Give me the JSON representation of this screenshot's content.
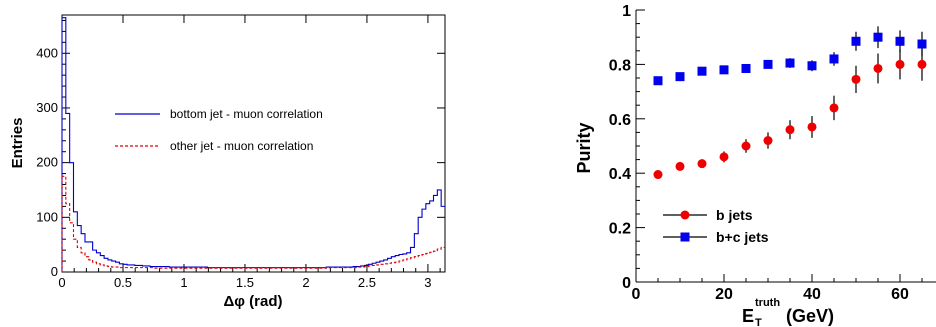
{
  "chart_data": [
    {
      "type": "histogram",
      "xlabel": "Δφ (rad)",
      "ylabel": "Entries",
      "xlim": [
        0,
        3.14
      ],
      "ylim": [
        0,
        470
      ],
      "x_ticks": [
        "0",
        "0.5",
        "1",
        "1.5",
        "2",
        "2.5",
        "3"
      ],
      "x_tick_values": [
        0,
        0.5,
        1,
        1.5,
        2,
        2.5,
        3
      ],
      "y_ticks": [
        "0",
        "100",
        "200",
        "300",
        "400"
      ],
      "y_tick_values": [
        0,
        100,
        200,
        300,
        400
      ],
      "bin_width": 0.0314,
      "legend_position": "center-right",
      "series": [
        {
          "name": "bottom jet - muon correlation",
          "color": "#0000cc",
          "style": "solid",
          "values": [
            465,
            290,
            200,
            110,
            85,
            70,
            55,
            55,
            40,
            35,
            30,
            25,
            22,
            20,
            18,
            15,
            14,
            13,
            13,
            12,
            12,
            11,
            11,
            10,
            10,
            10,
            10,
            10,
            9,
            9,
            9,
            9,
            9,
            9,
            9,
            9,
            9,
            9,
            8,
            8,
            8,
            8,
            8,
            8,
            8,
            8,
            8,
            8,
            8,
            8,
            8,
            8,
            8,
            8,
            8,
            8,
            8,
            8,
            8,
            8,
            8,
            8,
            8,
            8,
            8,
            8,
            8,
            8,
            8,
            9,
            9,
            9,
            9,
            9,
            9,
            9,
            10,
            10,
            11,
            12,
            14,
            16,
            18,
            20,
            22,
            25,
            28,
            30,
            32,
            33,
            35,
            45,
            70,
            100,
            115,
            125,
            130,
            140,
            150,
            120
          ]
        },
        {
          "name": "other jet - muon correlation",
          "color": "#dd0000",
          "style": "dashed",
          "values": [
            175,
            125,
            90,
            60,
            45,
            35,
            28,
            22,
            18,
            15,
            13,
            11,
            10,
            9,
            9,
            8,
            8,
            8,
            8,
            8,
            8,
            8,
            8,
            8,
            7,
            7,
            7,
            7,
            7,
            7,
            7,
            7,
            7,
            7,
            7,
            7,
            7,
            7,
            7,
            7,
            7,
            7,
            7,
            7,
            7,
            7,
            7,
            7,
            7,
            7,
            7,
            7,
            7,
            7,
            7,
            7,
            7,
            7,
            7,
            7,
            7,
            7,
            7,
            7,
            7,
            7,
            7,
            7,
            7,
            8,
            8,
            8,
            8,
            8,
            8,
            8,
            8,
            9,
            9,
            10,
            11,
            12,
            13,
            14,
            15,
            16,
            17,
            18,
            20,
            22,
            24,
            26,
            28,
            30,
            32,
            34,
            36,
            38,
            42,
            45
          ]
        }
      ]
    },
    {
      "type": "scatter",
      "xlabel_main": "E",
      "xlabel_sup": "truth",
      "xlabel_sub": "T",
      "xlabel_unit": " (GeV)",
      "ylabel": "Purity",
      "xlim": [
        0,
        70
      ],
      "ylim": [
        0,
        1
      ],
      "x_ticks": [
        "0",
        "20",
        "40",
        "60"
      ],
      "x_tick_values": [
        0,
        20,
        40,
        60
      ],
      "y_ticks": [
        "0",
        "0.2",
        "0.4",
        "0.6",
        "0.8",
        "1"
      ],
      "y_tick_values": [
        0,
        0.2,
        0.4,
        0.6,
        0.8,
        1.0
      ],
      "legend_position": "bottom-left",
      "series": [
        {
          "name": "b jets",
          "color": "#ee0000",
          "marker": "circle",
          "x": [
            5,
            10,
            15,
            20,
            25,
            30,
            35,
            40,
            45,
            50,
            55,
            60,
            65
          ],
          "y": [
            0.395,
            0.425,
            0.435,
            0.46,
            0.5,
            0.52,
            0.56,
            0.57,
            0.64,
            0.745,
            0.785,
            0.8,
            0.8
          ],
          "err": [
            0.012,
            0.014,
            0.016,
            0.02,
            0.025,
            0.03,
            0.035,
            0.04,
            0.045,
            0.05,
            0.055,
            0.055,
            0.06
          ]
        },
        {
          "name": "b+c jets",
          "color": "#0000ee",
          "marker": "square",
          "x": [
            5,
            10,
            15,
            20,
            25,
            30,
            35,
            40,
            45,
            50,
            55,
            60,
            65
          ],
          "y": [
            0.74,
            0.755,
            0.775,
            0.78,
            0.785,
            0.8,
            0.805,
            0.795,
            0.82,
            0.885,
            0.9,
            0.885,
            0.875
          ],
          "err": [
            0.008,
            0.009,
            0.01,
            0.012,
            0.012,
            0.015,
            0.018,
            0.02,
            0.025,
            0.035,
            0.04,
            0.04,
            0.045
          ]
        }
      ]
    }
  ]
}
